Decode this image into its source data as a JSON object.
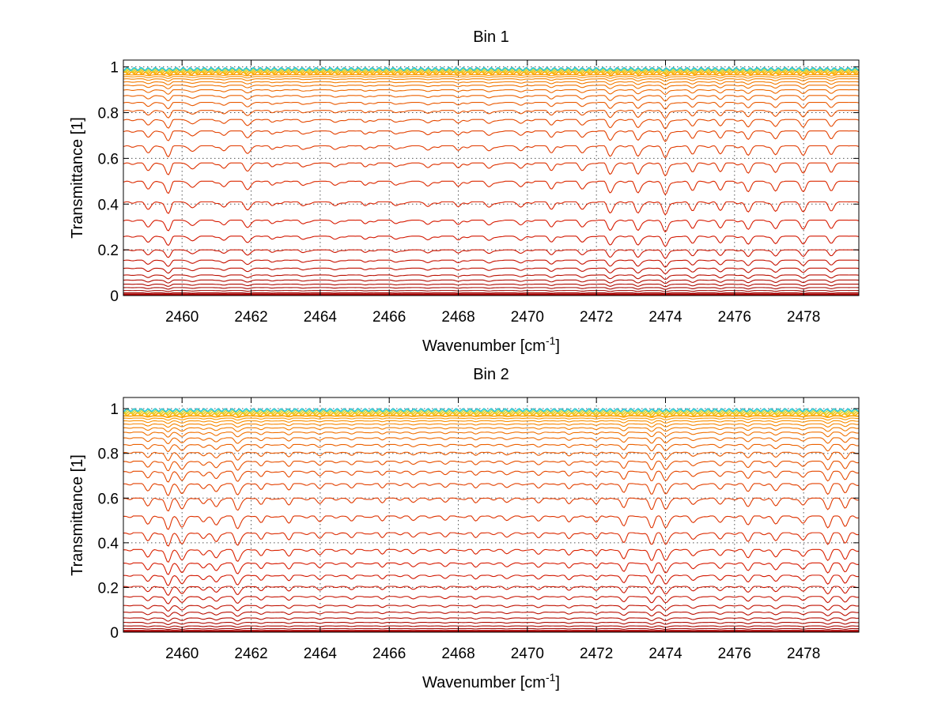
{
  "chart_data": [
    {
      "type": "line",
      "title": "Bin 1",
      "xlabel": "Wavenumber [cm",
      "xlabel_sup": "-1",
      "xlabel_suffix": "]",
      "ylabel": "Transmittance [1]",
      "xlim": [
        2458.3,
        2479.6
      ],
      "ylim": [
        0,
        1.03
      ],
      "xticks": [
        2460,
        2462,
        2464,
        2466,
        2468,
        2470,
        2472,
        2474,
        2476,
        2478
      ],
      "yticks": [
        0,
        0.2,
        0.4,
        0.6,
        0.8,
        1
      ],
      "ytick_labels": [
        "0",
        "0.2",
        "0.4",
        "0.6",
        "0.8",
        "1"
      ],
      "grid": true,
      "series_levels": [
        0.005,
        0.012,
        0.022,
        0.035,
        0.05,
        0.068,
        0.09,
        0.12,
        0.155,
        0.2,
        0.26,
        0.33,
        0.41,
        0.5,
        0.58,
        0.655,
        0.72,
        0.77,
        0.81,
        0.845,
        0.875,
        0.9,
        0.92,
        0.935,
        0.948,
        0.958,
        0.966,
        0.973,
        0.979,
        0.984,
        0.988,
        0.991
      ],
      "absorption_lines": [
        {
          "x": 2459.0,
          "depth": 0.35
        },
        {
          "x": 2459.6,
          "depth": 0.45
        },
        {
          "x": 2460.3,
          "depth": 0.25
        },
        {
          "x": 2461.2,
          "depth": 0.2
        },
        {
          "x": 2461.9,
          "depth": 0.3
        },
        {
          "x": 2462.6,
          "depth": 0.18
        },
        {
          "x": 2463.5,
          "depth": 0.22
        },
        {
          "x": 2464.4,
          "depth": 0.2
        },
        {
          "x": 2465.3,
          "depth": 0.18
        },
        {
          "x": 2466.2,
          "depth": 0.2
        },
        {
          "x": 2467.1,
          "depth": 0.22
        },
        {
          "x": 2468.0,
          "depth": 0.2
        },
        {
          "x": 2468.9,
          "depth": 0.24
        },
        {
          "x": 2469.8,
          "depth": 0.22
        },
        {
          "x": 2470.7,
          "depth": 0.28
        },
        {
          "x": 2471.6,
          "depth": 0.3
        },
        {
          "x": 2472.4,
          "depth": 0.45
        },
        {
          "x": 2473.2,
          "depth": 0.5
        },
        {
          "x": 2474.0,
          "depth": 0.6
        },
        {
          "x": 2474.8,
          "depth": 0.4
        },
        {
          "x": 2475.6,
          "depth": 0.35
        },
        {
          "x": 2476.4,
          "depth": 0.42
        },
        {
          "x": 2477.2,
          "depth": 0.38
        },
        {
          "x": 2478.0,
          "depth": 0.35
        },
        {
          "x": 2478.8,
          "depth": 0.3
        }
      ]
    },
    {
      "type": "line",
      "title": "Bin 2",
      "xlabel": "Wavenumber [cm",
      "xlabel_sup": "-1",
      "xlabel_suffix": "]",
      "ylabel": "Transmittance [1]",
      "xlim": [
        2458.3,
        2479.6
      ],
      "ylim": [
        0,
        1.05
      ],
      "xticks": [
        2460,
        2462,
        2464,
        2466,
        2468,
        2470,
        2472,
        2474,
        2476,
        2478
      ],
      "yticks": [
        0,
        0.2,
        0.4,
        0.6,
        0.8,
        1
      ],
      "ytick_labels": [
        "0",
        "0.2",
        "0.4",
        "0.6",
        "0.8",
        "1"
      ],
      "grid": true,
      "series_levels": [
        0.003,
        0.008,
        0.016,
        0.028,
        0.044,
        0.064,
        0.09,
        0.12,
        0.16,
        0.205,
        0.255,
        0.31,
        0.37,
        0.445,
        0.52,
        0.6,
        0.665,
        0.72,
        0.765,
        0.805,
        0.84,
        0.87,
        0.895,
        0.915,
        0.932,
        0.946,
        0.958,
        0.968,
        0.976,
        0.983,
        0.989,
        0.994
      ],
      "absorption_lines": [
        {
          "x": 2459.0,
          "depth": 0.3
        },
        {
          "x": 2459.6,
          "depth": 0.6
        },
        {
          "x": 2460.0,
          "depth": 0.45
        },
        {
          "x": 2460.6,
          "depth": 0.3
        },
        {
          "x": 2461.0,
          "depth": 0.35
        },
        {
          "x": 2461.6,
          "depth": 0.55
        },
        {
          "x": 2462.3,
          "depth": 0.3
        },
        {
          "x": 2463.1,
          "depth": 0.28
        },
        {
          "x": 2464.0,
          "depth": 0.25
        },
        {
          "x": 2464.9,
          "depth": 0.22
        },
        {
          "x": 2465.8,
          "depth": 0.2
        },
        {
          "x": 2466.7,
          "depth": 0.22
        },
        {
          "x": 2467.6,
          "depth": 0.2
        },
        {
          "x": 2468.5,
          "depth": 0.22
        },
        {
          "x": 2469.4,
          "depth": 0.24
        },
        {
          "x": 2470.3,
          "depth": 0.25
        },
        {
          "x": 2471.2,
          "depth": 0.28
        },
        {
          "x": 2472.0,
          "depth": 0.3
        },
        {
          "x": 2472.8,
          "depth": 0.4
        },
        {
          "x": 2473.6,
          "depth": 0.45
        },
        {
          "x": 2474.0,
          "depth": 0.5
        },
        {
          "x": 2474.8,
          "depth": 0.35
        },
        {
          "x": 2475.6,
          "depth": 0.32
        },
        {
          "x": 2476.4,
          "depth": 0.38
        },
        {
          "x": 2477.2,
          "depth": 0.35
        },
        {
          "x": 2478.0,
          "depth": 0.32
        },
        {
          "x": 2478.7,
          "depth": 0.4
        },
        {
          "x": 2479.2,
          "depth": 0.45
        }
      ]
    }
  ]
}
